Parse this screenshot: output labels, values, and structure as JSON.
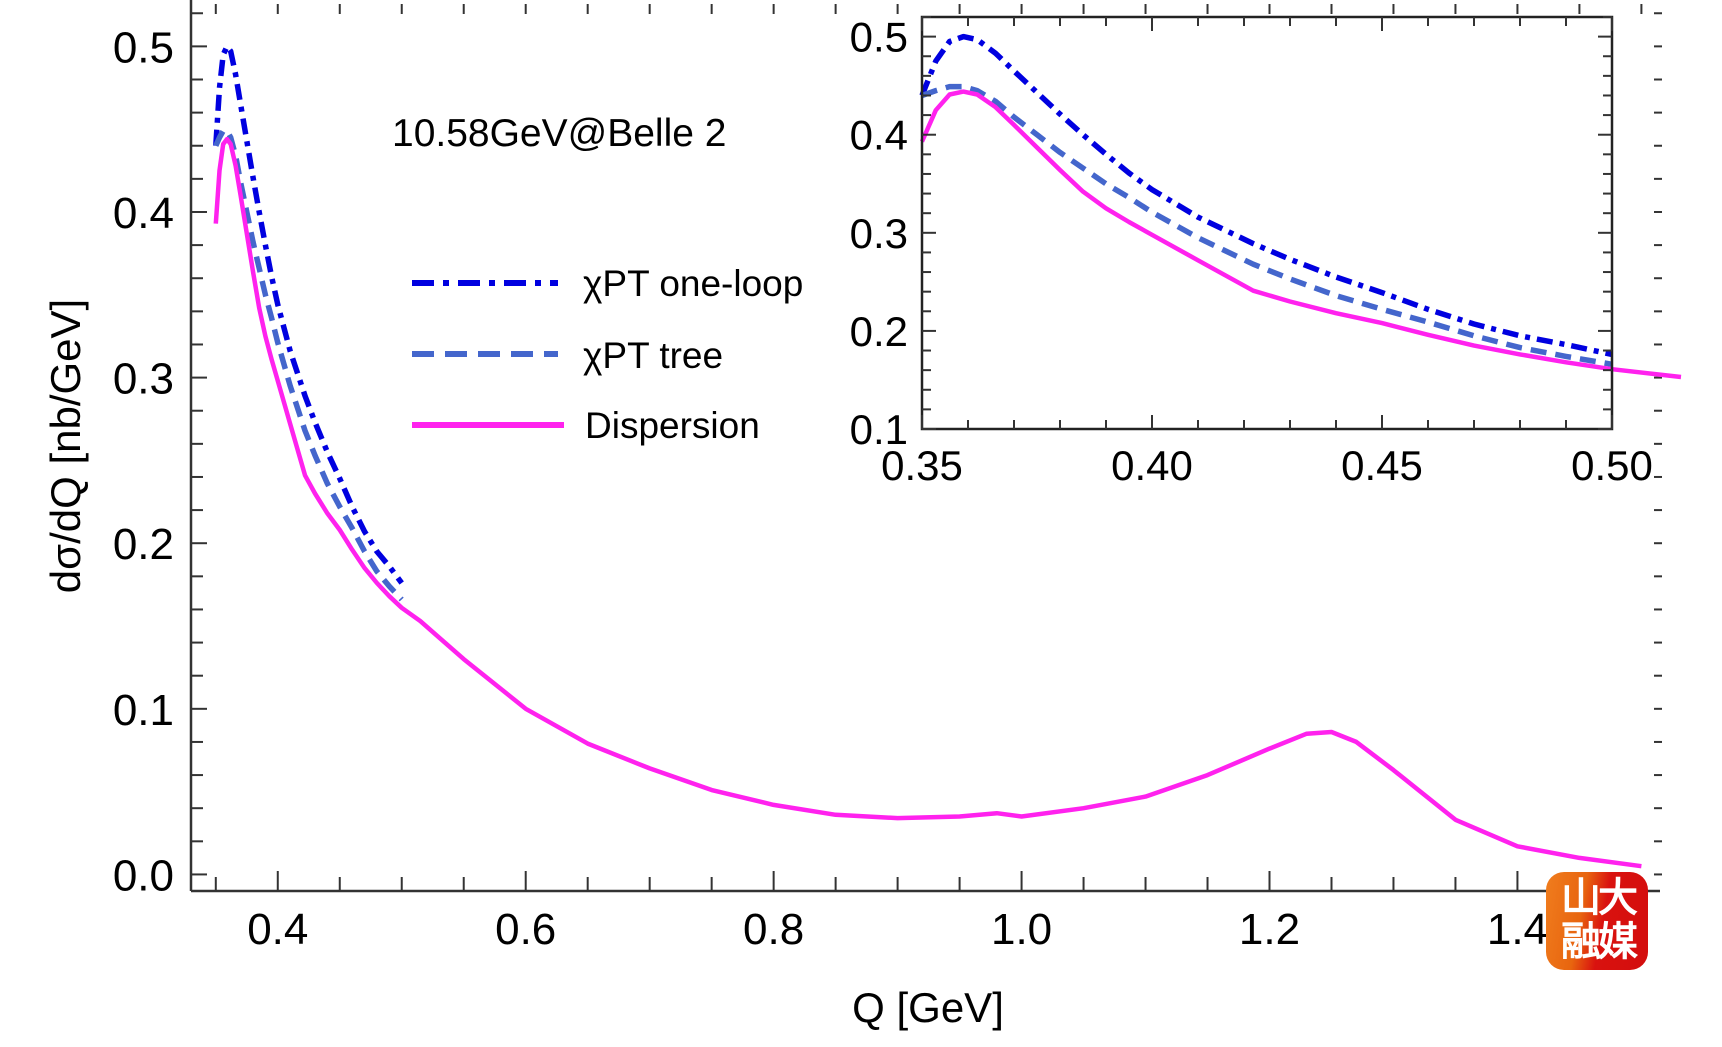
{
  "chart_data": [
    {
      "id": "main",
      "type": "line",
      "title": "",
      "annotation": "10.58GeV@Belle 2",
      "xlabel": "Q [GeV]",
      "ylabel": "dσ/dQ [nb/GeV]",
      "xlim": [
        0.33,
        1.515
      ],
      "ylim": [
        -0.01,
        0.528
      ],
      "xticks": [
        0.4,
        0.6,
        0.8,
        1.0,
        1.2,
        1.4
      ],
      "xtick_labels": [
        "0.4",
        "0.6",
        "0.8",
        "1.0",
        "1.2",
        "1.4"
      ],
      "yticks": [
        0.0,
        0.1,
        0.2,
        0.3,
        0.4,
        0.5
      ],
      "ytick_labels": [
        "0.0",
        "0.1",
        "0.2",
        "0.3",
        "0.4",
        "0.5"
      ],
      "grid": false,
      "legend_position": "upper-center",
      "series": [
        {
          "name": "χPT one-loop",
          "color": "#0000e0",
          "style": "dash-dot",
          "x": [
            0.35,
            0.353,
            0.356,
            0.359,
            0.362,
            0.366,
            0.37,
            0.375,
            0.38,
            0.385,
            0.39,
            0.395,
            0.4,
            0.41,
            0.422,
            0.43,
            0.44,
            0.45,
            0.46,
            0.47,
            0.48,
            0.49,
            0.5
          ],
          "y": [
            0.44,
            0.475,
            0.495,
            0.5,
            0.497,
            0.483,
            0.465,
            0.443,
            0.421,
            0.4,
            0.38,
            0.361,
            0.344,
            0.316,
            0.289,
            0.273,
            0.255,
            0.239,
            0.222,
            0.207,
            0.195,
            0.186,
            0.176
          ]
        },
        {
          "name": "χPT tree",
          "color": "#4466cc",
          "style": "dashed",
          "x": [
            0.35,
            0.353,
            0.356,
            0.359,
            0.362,
            0.366,
            0.37,
            0.375,
            0.38,
            0.385,
            0.39,
            0.395,
            0.4,
            0.41,
            0.422,
            0.43,
            0.44,
            0.45,
            0.46,
            0.47,
            0.48,
            0.49,
            0.5
          ],
          "y": [
            0.44,
            0.445,
            0.449,
            0.449,
            0.445,
            0.434,
            0.418,
            0.4,
            0.382,
            0.366,
            0.35,
            0.336,
            0.321,
            0.295,
            0.268,
            0.253,
            0.236,
            0.222,
            0.209,
            0.195,
            0.183,
            0.174,
            0.166
          ]
        },
        {
          "name": "Dispersion",
          "color": "#ff22ee",
          "style": "solid",
          "x": [
            0.35,
            0.353,
            0.356,
            0.359,
            0.362,
            0.366,
            0.37,
            0.375,
            0.38,
            0.385,
            0.39,
            0.395,
            0.4,
            0.41,
            0.422,
            0.43,
            0.44,
            0.45,
            0.46,
            0.47,
            0.48,
            0.49,
            0.5,
            0.515,
            0.55,
            0.6,
            0.65,
            0.7,
            0.75,
            0.8,
            0.85,
            0.9,
            0.95,
            0.98,
            1.0,
            1.05,
            1.1,
            1.15,
            1.2,
            1.23,
            1.25,
            1.27,
            1.3,
            1.35,
            1.4,
            1.45,
            1.5
          ],
          "y": [
            0.393,
            0.425,
            0.441,
            0.444,
            0.441,
            0.428,
            0.41,
            0.387,
            0.364,
            0.342,
            0.325,
            0.311,
            0.298,
            0.272,
            0.241,
            0.23,
            0.218,
            0.208,
            0.196,
            0.185,
            0.176,
            0.168,
            0.161,
            0.153,
            0.13,
            0.1,
            0.079,
            0.064,
            0.051,
            0.042,
            0.036,
            0.034,
            0.035,
            0.037,
            0.035,
            0.04,
            0.047,
            0.06,
            0.076,
            0.085,
            0.086,
            0.08,
            0.063,
            0.033,
            0.017,
            0.01,
            0.005
          ]
        }
      ]
    },
    {
      "id": "inset",
      "type": "line",
      "title": "",
      "xlabel": "",
      "ylabel": "",
      "xlim": [
        0.35,
        0.5
      ],
      "ylim": [
        0.1,
        0.52
      ],
      "xticks": [
        0.35,
        0.4,
        0.45,
        0.5
      ],
      "xtick_labels": [
        "0.35",
        "0.40",
        "0.45",
        "0.50"
      ],
      "yticks": [
        0.1,
        0.2,
        0.3,
        0.4,
        0.5
      ],
      "ytick_labels": [
        "0.1",
        "0.2",
        "0.3",
        "0.4",
        "0.5"
      ],
      "grid": false,
      "series_ref": "same data as main chart, zoomed to Q in [0.35, 0.50]"
    }
  ],
  "legend": {
    "items": [
      {
        "label": "χPT one-loop",
        "color": "#0000e0",
        "style": "dash-dot"
      },
      {
        "label": "χPT tree",
        "color": "#4466cc",
        "style": "dashed"
      },
      {
        "label": "Dispersion",
        "color": "#ff22ee",
        "style": "solid"
      }
    ]
  },
  "watermark": {
    "text": "山大融媒"
  }
}
